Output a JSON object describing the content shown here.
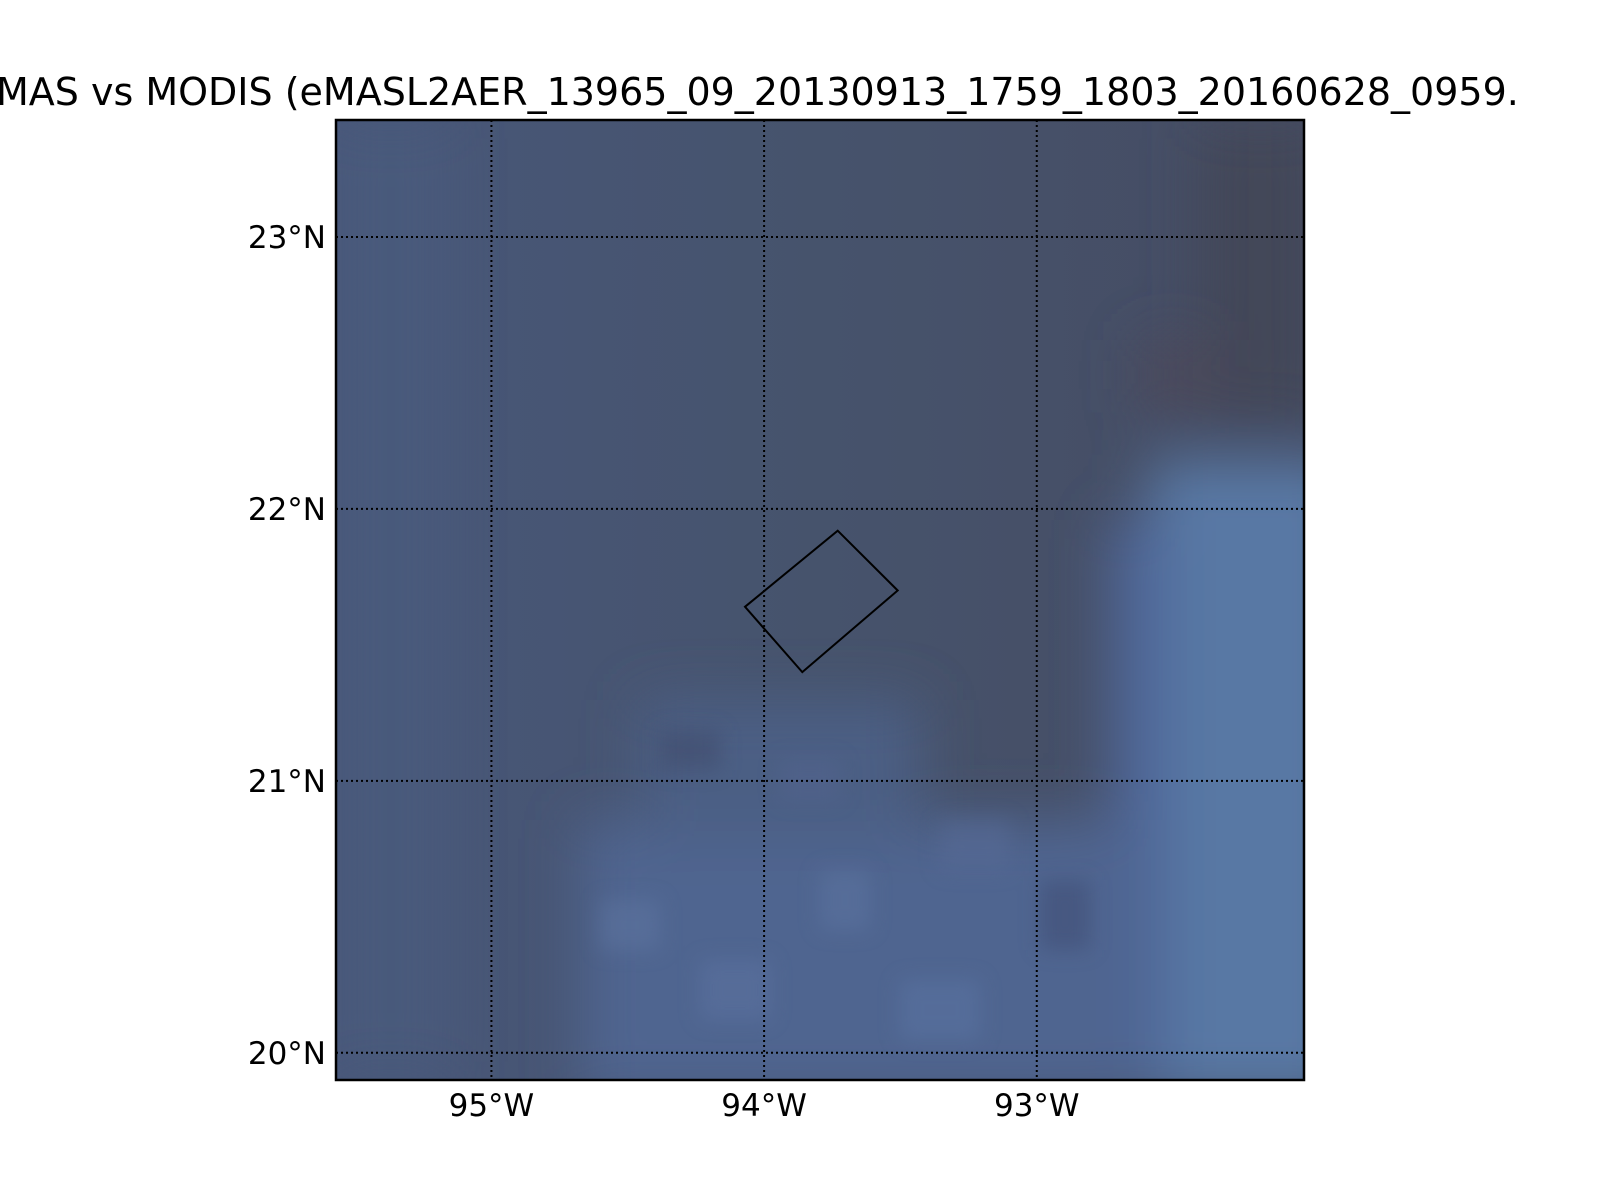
{
  "title": "MAS vs MODIS (eMASL2AER_13965_09_20130913_1759_1803_20160628_0959.",
  "map": {
    "projection": "cylindrical",
    "lon_range": [
      -95.57,
      -92.02
    ],
    "lat_range": [
      19.9,
      23.43
    ],
    "graticule_style": "dotted",
    "background_colors": [
      "#475670",
      "#46526a",
      "#4a5c7e",
      "#55749f",
      "#43495c"
    ]
  },
  "meridians": [
    {
      "lon": -95,
      "label": "95°W"
    },
    {
      "lon": -94,
      "label": "94°W"
    },
    {
      "lon": -93,
      "label": "93°W"
    }
  ],
  "parallels": [
    {
      "lat": 23,
      "label": "23°N"
    },
    {
      "lat": 22,
      "label": "22°N"
    },
    {
      "lat": 21,
      "label": "21°N"
    },
    {
      "lat": 20,
      "label": "20°N"
    }
  ],
  "footprint": {
    "corners": [
      {
        "lon": -93.73,
        "lat": 21.92
      },
      {
        "lon": -93.51,
        "lat": 21.7
      },
      {
        "lon": -93.86,
        "lat": 21.4
      },
      {
        "lon": -94.07,
        "lat": 21.64
      }
    ],
    "color": "#000000"
  }
}
